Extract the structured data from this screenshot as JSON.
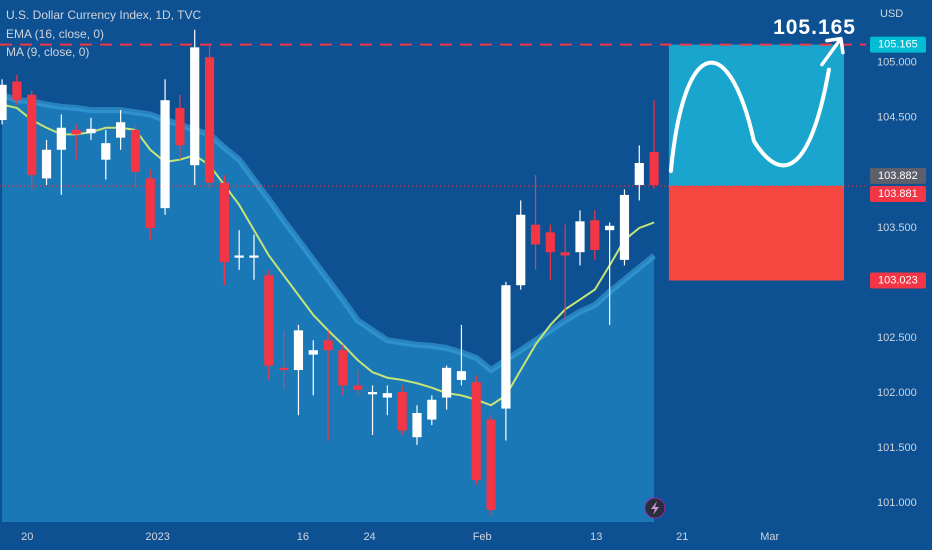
{
  "chart_data": {
    "type": "candlestick",
    "title": "U.S. Dollar Currency Index, 1D, TVC",
    "currency": "USD",
    "up_color": "#ffffff",
    "down_color": "#f23645",
    "x": [
      0,
      1,
      2,
      3,
      4,
      5,
      6,
      7,
      8,
      9,
      10,
      11,
      12,
      13,
      14,
      15,
      16,
      17,
      18,
      19,
      20,
      21,
      22,
      23,
      24,
      25,
      26,
      27,
      28,
      29,
      30,
      31,
      32,
      33,
      34,
      35,
      36,
      37,
      38,
      39,
      40,
      41,
      42,
      43,
      44
    ],
    "open": [
      104.48,
      104.83,
      104.71,
      103.95,
      104.21,
      104.39,
      104.36,
      104.12,
      104.32,
      104.39,
      103.95,
      103.68,
      104.59,
      104.07,
      105.05,
      103.91,
      103.23,
      103.23,
      103.07,
      102.23,
      102.21,
      102.35,
      102.48,
      102.39,
      102.07,
      101.99,
      101.96,
      102.01,
      101.6,
      101.76,
      101.96,
      102.12,
      102.1,
      101.76,
      101.86,
      102.98,
      103.53,
      103.46,
      103.28,
      103.28,
      103.57,
      103.48,
      103.21,
      103.89,
      104.19
    ],
    "high": [
      104.85,
      104.89,
      104.75,
      104.3,
      104.53,
      104.44,
      104.5,
      104.39,
      104.57,
      104.44,
      104.03,
      104.85,
      104.71,
      105.3,
      105.16,
      103.98,
      103.48,
      103.44,
      103.12,
      102.57,
      102.62,
      102.48,
      102.57,
      102.44,
      102.21,
      102.07,
      102.07,
      102.07,
      101.89,
      101.98,
      102.25,
      102.62,
      102.16,
      101.8,
      103.01,
      103.75,
      103.98,
      103.53,
      103.53,
      103.66,
      103.66,
      103.55,
      103.85,
      104.25,
      104.66
    ],
    "low": [
      104.44,
      104.62,
      103.85,
      103.89,
      103.8,
      104.12,
      104.3,
      103.94,
      104.21,
      103.85,
      103.39,
      103.62,
      104.12,
      103.89,
      103.85,
      102.98,
      103.12,
      103.03,
      102.12,
      102.03,
      101.8,
      101.98,
      101.57,
      101.98,
      101.98,
      101.62,
      101.8,
      101.62,
      101.53,
      101.71,
      101.85,
      102.07,
      101.17,
      100.89,
      101.57,
      102.94,
      103.12,
      103.03,
      102.66,
      103.16,
      103.21,
      102.62,
      103.16,
      103.75,
      103.86
    ],
    "close": [
      104.8,
      104.66,
      103.98,
      104.21,
      104.41,
      104.35,
      104.4,
      104.27,
      104.46,
      104.01,
      103.5,
      104.66,
      104.25,
      105.14,
      103.91,
      103.19,
      103.25,
      103.25,
      102.25,
      102.21,
      102.57,
      102.39,
      102.39,
      102.07,
      102.03,
      102.01,
      102.0,
      101.66,
      101.82,
      101.94,
      102.23,
      102.2,
      101.21,
      100.94,
      102.98,
      103.62,
      103.35,
      103.28,
      103.25,
      103.56,
      103.3,
      103.52,
      103.8,
      104.09,
      103.89
    ],
    "series": [
      {
        "name": "EMA (16, close, 0)",
        "type": "line",
        "color": "#c5e478",
        "values": [
          104.62,
          104.59,
          104.48,
          104.41,
          104.35,
          104.35,
          104.37,
          104.41,
          104.41,
          104.39,
          104.21,
          104.1,
          104.12,
          104.16,
          104.07,
          103.89,
          103.71,
          103.48,
          103.25,
          103.07,
          102.89,
          102.71,
          102.57,
          102.44,
          102.3,
          102.19,
          102.14,
          102.12,
          102.09,
          102.05,
          102.0,
          101.98,
          101.94,
          101.89,
          101.98,
          102.21,
          102.44,
          102.62,
          102.76,
          102.85,
          102.94,
          103.16,
          103.39,
          103.5,
          103.55
        ]
      },
      {
        "name": "MA (9, close, 0)",
        "type": "area",
        "color": "#1b78b6",
        "values": [
          104.71,
          104.66,
          104.65,
          104.62,
          104.6,
          104.59,
          104.57,
          104.57,
          104.57,
          104.55,
          104.53,
          104.48,
          104.44,
          104.39,
          104.35,
          104.23,
          104.12,
          103.94,
          103.76,
          103.57,
          103.39,
          103.21,
          103.03,
          102.85,
          102.66,
          102.57,
          102.48,
          102.46,
          102.44,
          102.43,
          102.41,
          102.37,
          102.32,
          102.21,
          102.3,
          102.39,
          102.48,
          102.57,
          102.66,
          102.74,
          102.8,
          102.92,
          103.03,
          103.14,
          103.25
        ]
      }
    ],
    "xlim": [
      -0.14,
      58.3
    ],
    "xticks": [
      {
        "value": 1.7,
        "label": "20"
      },
      {
        "value": 10.5,
        "label": "2023"
      },
      {
        "value": 20.3,
        "label": "16"
      },
      {
        "value": 24.8,
        "label": "24"
      },
      {
        "value": 32.4,
        "label": "Feb"
      },
      {
        "value": 40.1,
        "label": "13"
      },
      {
        "value": 45.9,
        "label": "21"
      },
      {
        "value": 51.8,
        "label": "Mar"
      }
    ],
    "ylim": [
      100.83,
      105.57
    ],
    "yticks": [
      {
        "value": 101,
        "label": "101.000"
      },
      {
        "value": 101.5,
        "label": "101.500"
      },
      {
        "value": 102,
        "label": "102.000"
      },
      {
        "value": 102.5,
        "label": "102.500"
      },
      {
        "value": 103.5,
        "label": "103.500"
      },
      {
        "value": 104.5,
        "label": "104.500"
      },
      {
        "value": 105,
        "label": "105.000"
      }
    ],
    "price_labels": [
      {
        "value": 105.165,
        "label": "105.165",
        "color": "#00bcd4"
      },
      {
        "value": 103.882,
        "label": "103.882",
        "color": "#5d606b"
      },
      {
        "value": 103.881,
        "label": "103.881",
        "color": "#f23645"
      },
      {
        "value": 103.023,
        "label": "103.023",
        "color": "#f23645"
      }
    ],
    "target_label": "105.165"
  }
}
